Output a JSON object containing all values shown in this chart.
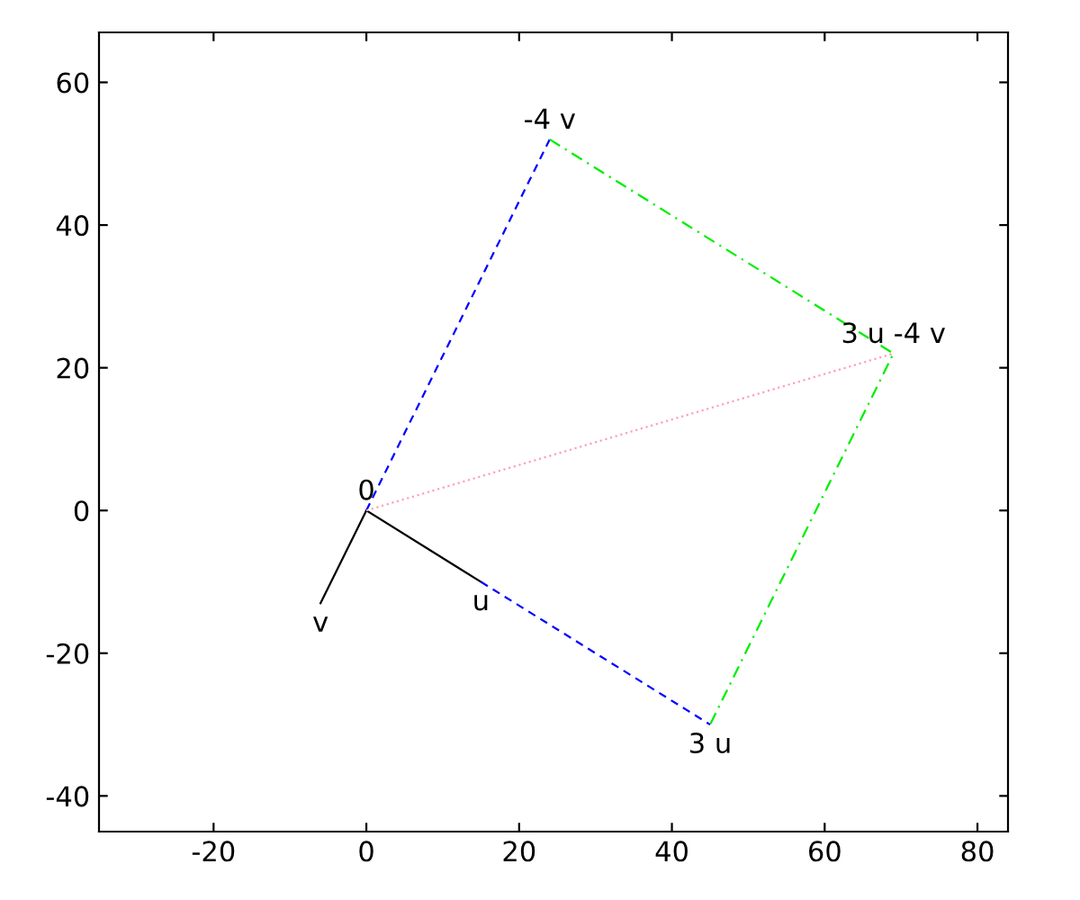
{
  "chart_data": {
    "type": "line",
    "series": [
      {
        "color": "#000000",
        "line_style": "solid",
        "x": [
          0,
          15
        ],
        "values": [
          0,
          -10
        ]
      },
      {
        "color": "#000000",
        "line_style": "solid",
        "x": [
          0,
          -6
        ],
        "values": [
          0,
          -13
        ]
      },
      {
        "color": "#0000ff",
        "line_style": "dashed",
        "x": [
          0,
          24
        ],
        "values": [
          0,
          52
        ]
      },
      {
        "color": "#0000ff",
        "line_style": "dashed",
        "x": [
          15,
          45
        ],
        "values": [
          -10,
          -30
        ]
      },
      {
        "color": "#00ee00",
        "line_style": "dashdot",
        "x": [
          24,
          69,
          45
        ],
        "values": [
          52,
          22,
          -30
        ]
      },
      {
        "color": "#ff9fb4",
        "line_style": "dotted",
        "x": [
          0,
          69
        ],
        "values": [
          0,
          22
        ]
      }
    ],
    "annotations": [
      {
        "text": "0",
        "x": 0,
        "y": 0
      },
      {
        "text": "u",
        "x": 15,
        "y": -10
      },
      {
        "text": "v",
        "x": -6,
        "y": -13
      },
      {
        "text": "3 u",
        "x": 45,
        "y": -30
      },
      {
        "text": "-4 v",
        "x": 24,
        "y": 52
      },
      {
        "text": "3 u -4 v",
        "x": 69,
        "y": 22
      }
    ],
    "xlim": [
      -35,
      84
    ],
    "ylim": [
      -45,
      67
    ],
    "xticks": [
      -20,
      0,
      20,
      40,
      60,
      80
    ],
    "yticks": [
      -40,
      -20,
      0,
      20,
      40,
      60
    ],
    "grid": false,
    "legend": false
  }
}
